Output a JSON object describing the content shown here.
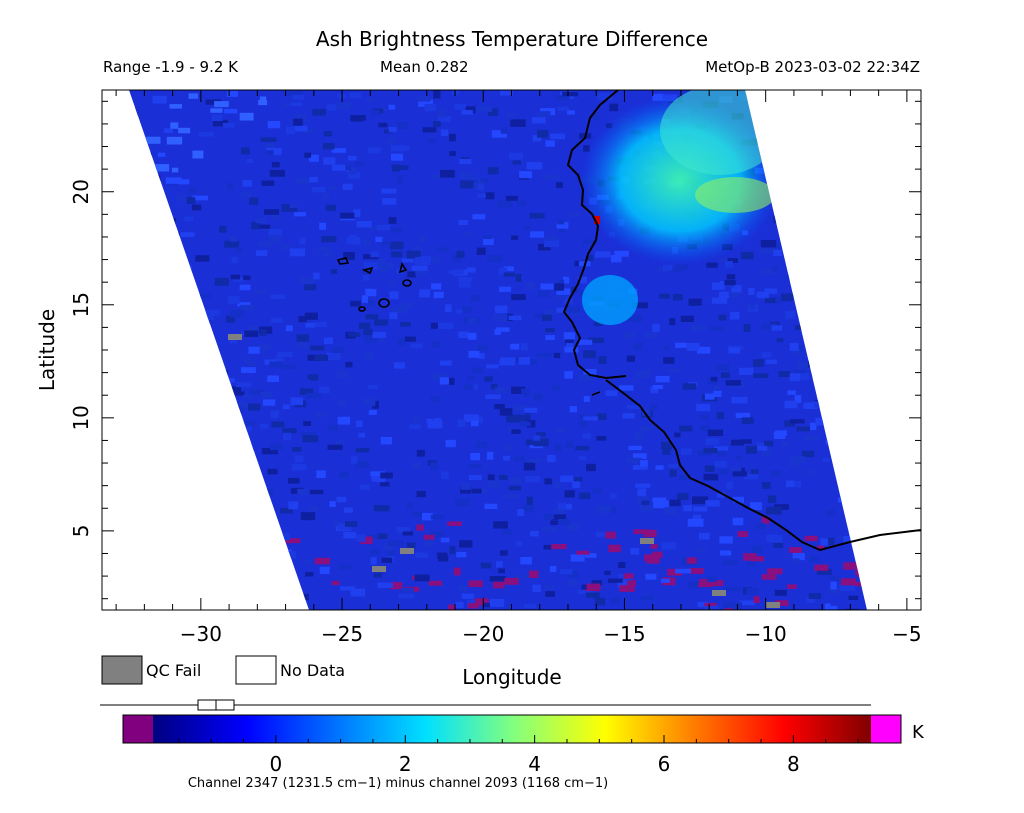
{
  "header": {
    "title": "Ash Brightness Temperature Difference",
    "range_text": "Range -1.9 - 9.2 K",
    "mean_text": "Mean 0.282",
    "satellite_time": "MetOp-B 2023-03-02 22:34Z"
  },
  "map": {
    "x_axis_label": "Longitude",
    "y_axis_label": "Latitude",
    "lon_range": [
      -33.5,
      -4.5
    ],
    "lat_range": [
      1.5,
      24.5
    ],
    "x_ticks": [
      {
        "value": -30,
        "label": "−30"
      },
      {
        "value": -25,
        "label": "−25"
      },
      {
        "value": -20,
        "label": "−20"
      },
      {
        "value": -15,
        "label": "−15"
      },
      {
        "value": -10,
        "label": "−10"
      },
      {
        "value": -5,
        "label": "−5"
      }
    ],
    "y_ticks": [
      {
        "value": 5,
        "label": "5"
      },
      {
        "value": 10,
        "label": "10"
      },
      {
        "value": 15,
        "label": "15"
      },
      {
        "value": 20,
        "label": "20"
      }
    ],
    "background_color": "#1a2fd6"
  },
  "legend": {
    "qc_fail_label": "QC Fail",
    "qc_fail_color": "#808080",
    "no_data_label": "No Data",
    "no_data_color": "#ffffff"
  },
  "colorbar": {
    "unit": "K",
    "range": [
      -1.9,
      9.2
    ],
    "tick_labels": [
      {
        "value": 0,
        "label": "0"
      },
      {
        "value": 2,
        "label": "2"
      },
      {
        "value": 4,
        "label": "4"
      },
      {
        "value": 6,
        "label": "6"
      },
      {
        "value": 8,
        "label": "8"
      }
    ],
    "under_color": "#800080",
    "over_color": "#ff00ff",
    "caption": "Channel 2347 (1231.5 cm−1) minus channel 2093 (1168 cm−1)"
  }
}
